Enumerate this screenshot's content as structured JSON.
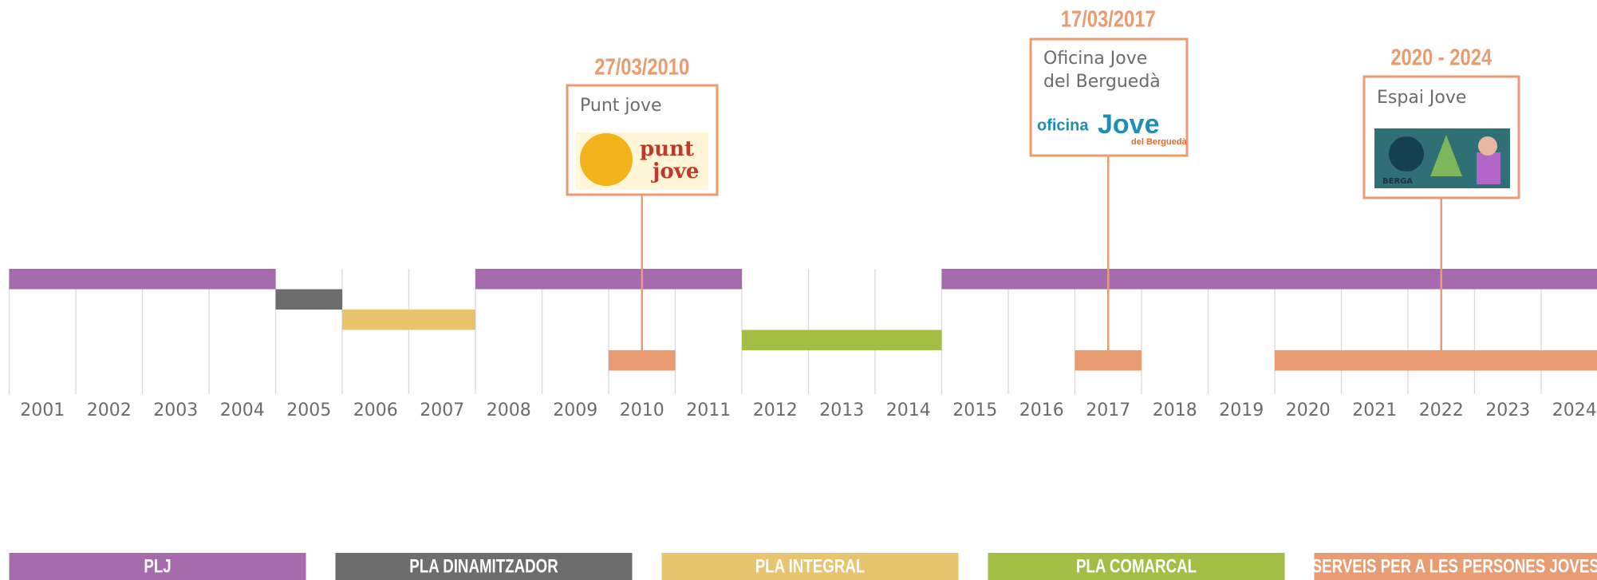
{
  "chart_data": {
    "type": "timeline",
    "xlim": [
      2001,
      2024
    ],
    "xticks": [
      2001,
      2002,
      2003,
      2004,
      2005,
      2006,
      2007,
      2008,
      2009,
      2010,
      2011,
      2012,
      2013,
      2014,
      2015,
      2016,
      2017,
      2018,
      2019,
      2020,
      2021,
      2022,
      2023,
      2024
    ],
    "grid": true,
    "series": [
      {
        "name": "PLJ",
        "color": "#a56bad",
        "segments": [
          {
            "start": 2001,
            "end": 2004
          },
          {
            "start": 2008,
            "end": 2011
          },
          {
            "start": 2015,
            "end": 2024
          }
        ]
      },
      {
        "name": "PLA DINAMITZADOR",
        "color": "#6d6d6d",
        "segments": [
          {
            "start": 2005,
            "end": 2005
          }
        ]
      },
      {
        "name": "PLA INTEGRAL",
        "color": "#e9c46f",
        "segments": [
          {
            "start": 2006,
            "end": 2007
          }
        ]
      },
      {
        "name": "PLA COMARCAL",
        "color": "#a3bd45",
        "segments": [
          {
            "start": 2012,
            "end": 2014
          }
        ]
      },
      {
        "name": "SERVEIS PER A LES PERSONES  JOVES",
        "color": "#e99b72",
        "segments": [
          {
            "start": 2010,
            "end": 2010
          },
          {
            "start": 2017,
            "end": 2017
          },
          {
            "start": 2020,
            "end": 2024
          }
        ]
      }
    ],
    "annotations": [
      {
        "date": "27/03/2010",
        "title": [
          "Punt jove"
        ],
        "x": 2010,
        "logo_text": [
          "punt",
          "jove"
        ]
      },
      {
        "date": "17/03/2017",
        "title": [
          "Oficina Jove",
          "del Berguedà"
        ],
        "x": 2017,
        "logo_text": [
          "oficina",
          "Jove",
          "del Berguedà"
        ]
      },
      {
        "date": "2020 - 2024",
        "title": [
          "Espai Jove"
        ],
        "x": 2022,
        "logo_text": [
          "BERGA"
        ]
      }
    ]
  }
}
